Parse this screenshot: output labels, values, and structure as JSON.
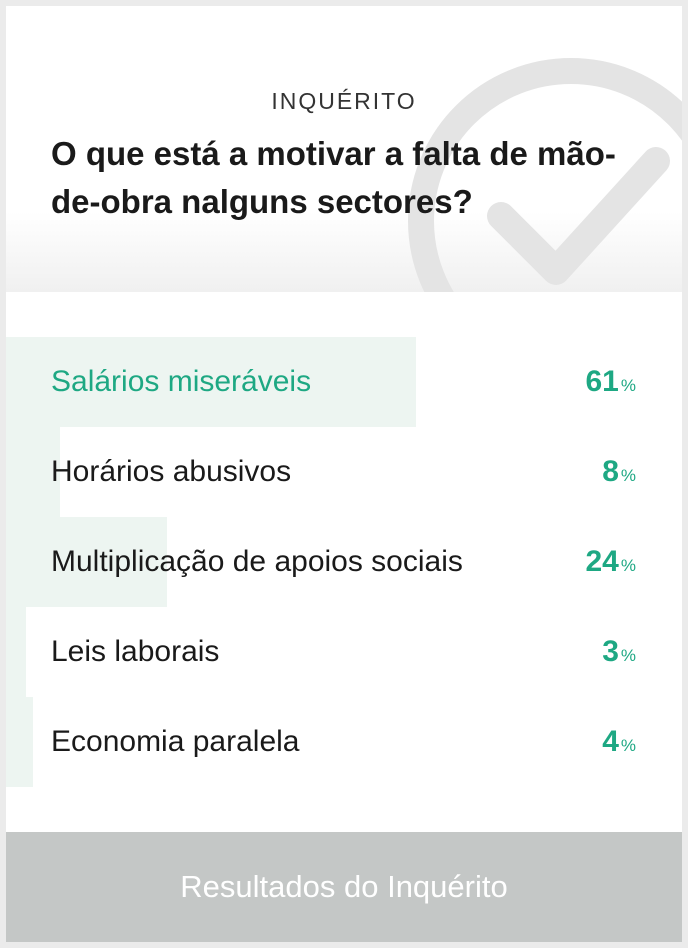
{
  "poll": {
    "kicker": "INQUÉRITO",
    "question": "O que está a motivar a falta de mão-de-obra nalguns sectores?",
    "options": [
      {
        "label": "Salários miseráveis",
        "percent": 61,
        "leading": true
      },
      {
        "label": "Horários abusivos",
        "percent": 8,
        "leading": false
      },
      {
        "label": "Multiplicação de apoios sociais",
        "percent": 24,
        "leading": false
      },
      {
        "label": "Leis laborais",
        "percent": 3,
        "leading": false
      },
      {
        "label": "Economia paralela",
        "percent": 4,
        "leading": false
      }
    ],
    "percent_symbol": "%",
    "results_label": "Resultados do Inquérito"
  },
  "colors": {
    "accent": "#1ea883",
    "bar": "#edf5f1",
    "button": "#c4c7c6",
    "watermark": "#e4e4e4"
  },
  "icons": {
    "watermark": "check-circle-icon"
  }
}
